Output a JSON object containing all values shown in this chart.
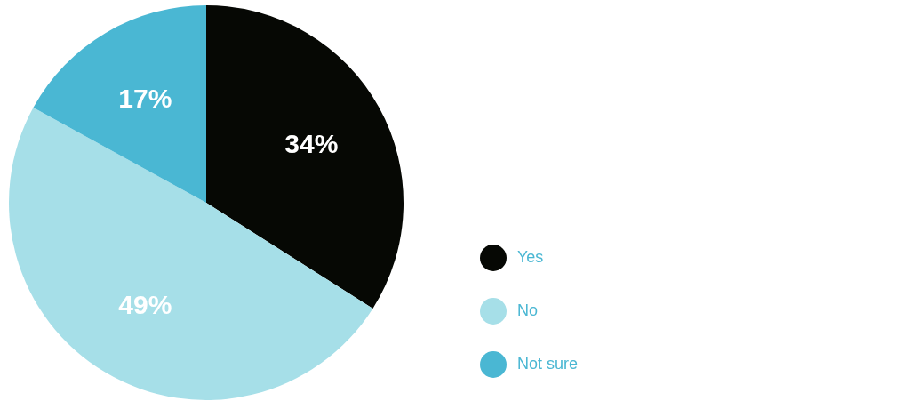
{
  "chart_data": {
    "type": "pie",
    "categories": [
      "Yes",
      "No",
      "Not sure"
    ],
    "values": [
      34,
      49,
      17
    ],
    "colors": [
      "#060804",
      "#a6dfe8",
      "#4ab7d3"
    ],
    "value_labels": [
      "34%",
      "49%",
      "17%"
    ],
    "legend": "right"
  }
}
